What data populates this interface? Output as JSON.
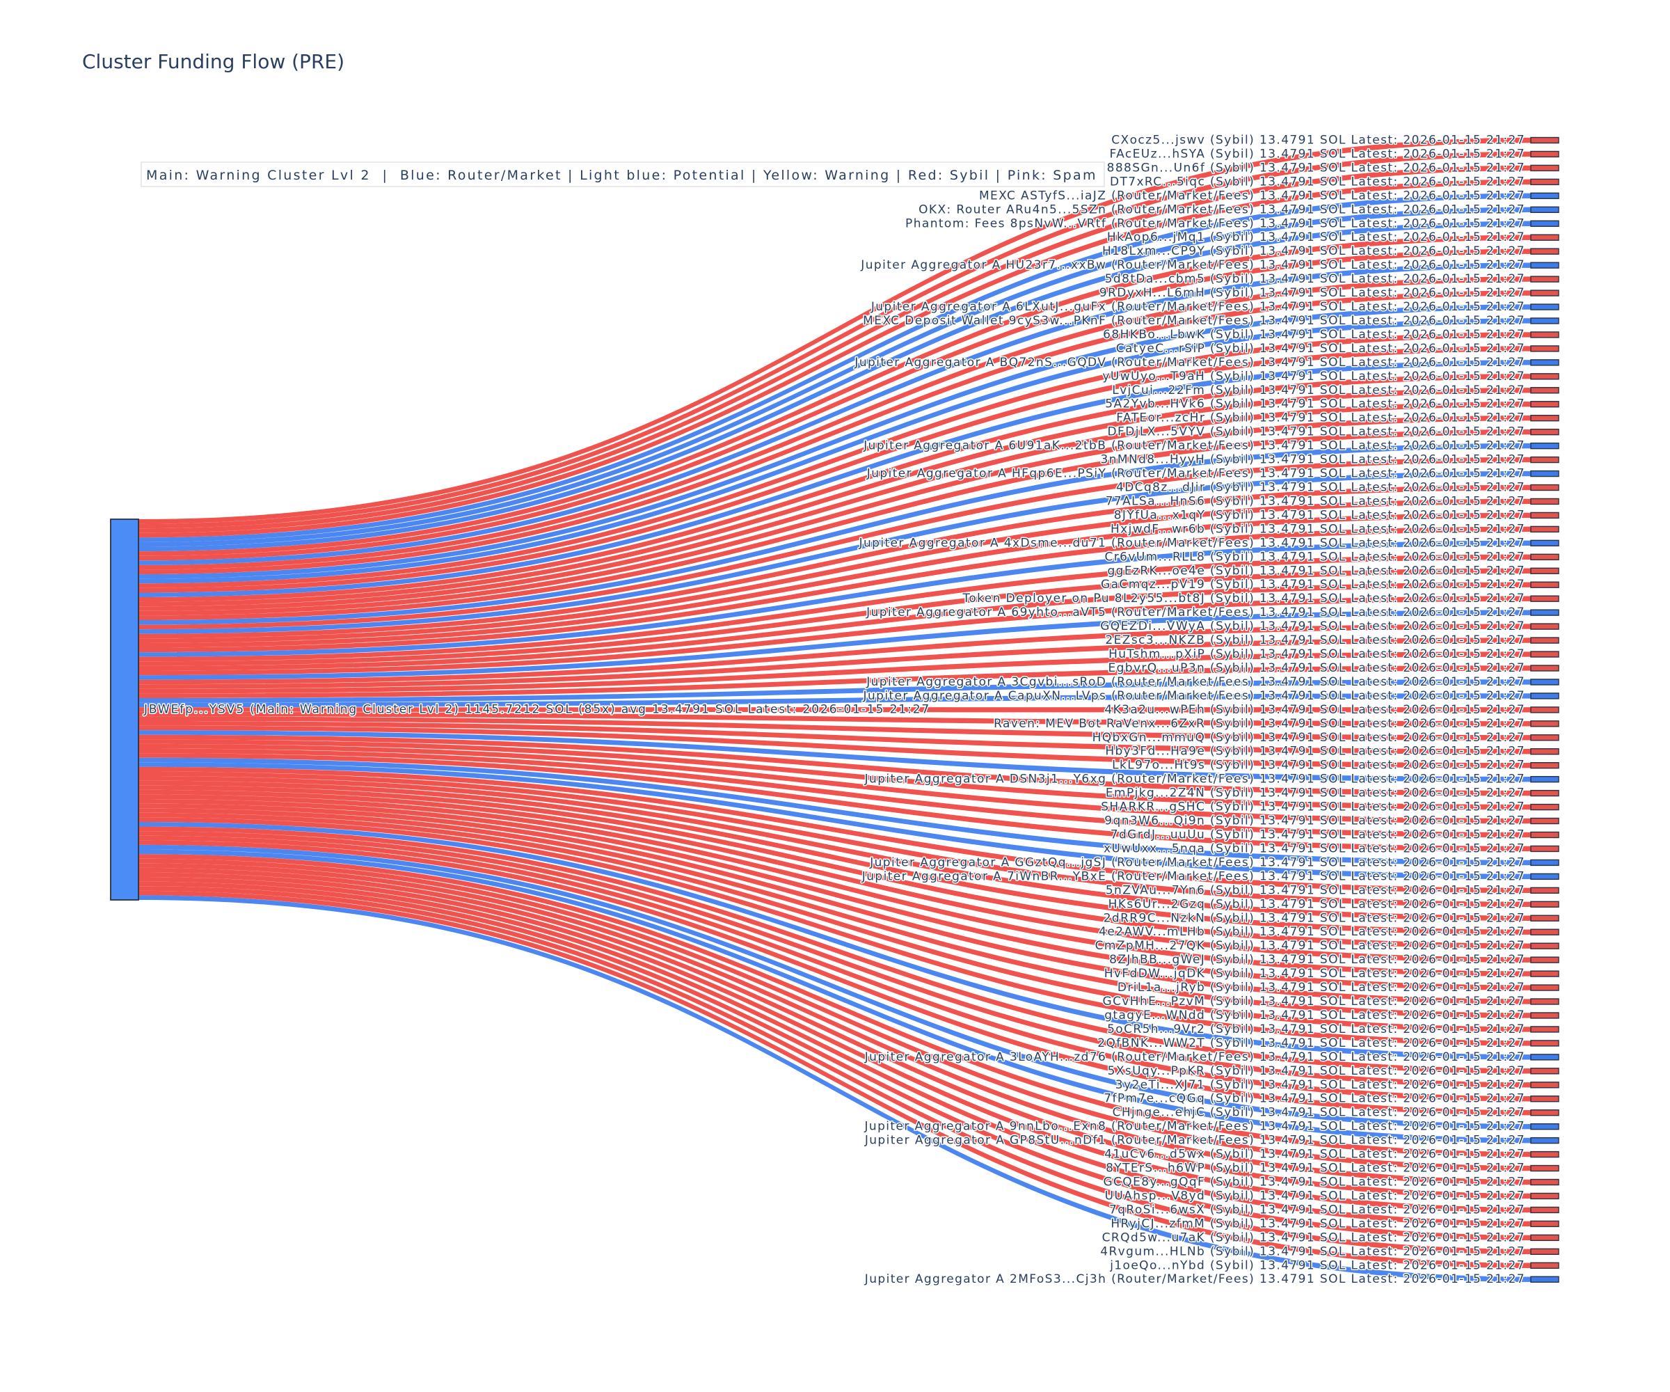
{
  "title": "Cluster Funding Flow (PRE)",
  "legend": {
    "text": "Main: Warning Cluster Lvl 2  |  Blue: Router/Market | Light blue: Potential | Yellow: Warning | Red: Sybil | Pink: Spam"
  },
  "colors": {
    "sybil_node": "#e4544e",
    "sybil_flow": "#f0534e",
    "router_node": "#3e7ce9",
    "router_flow": "#4c86f0",
    "main_node": "#4b8cf6",
    "node_border": "#2a3240",
    "text": "#2a3f5f"
  },
  "chart_data": {
    "type": "sankey",
    "source_node": {
      "label": "JBWEfp...YSV5 (Main: Warning Cluster Lvl 2) 1145.7212 SOL (85x) avg 13.4791 SOL Latest: 2026-01-15 21:27",
      "address": "JBWEfp...YSV5",
      "category": "Main: Warning Cluster Lvl 2",
      "total_sol": "1145.7212",
      "tx_count": "85x",
      "avg_sol": "13.4791",
      "latest": "2026-01-15 21:27"
    },
    "link_value_sol": "13.4791",
    "label_suffix": "13.4791 SOL Latest: 2026-01-15 21:27",
    "targets": [
      {
        "name": "CXocz5...jswv",
        "category": "Sybil"
      },
      {
        "name": "FAcEUz...hSYA",
        "category": "Sybil"
      },
      {
        "name": "888SGn...Un6f",
        "category": "Sybil"
      },
      {
        "name": "DT7xRC...5iqc",
        "category": "Sybil"
      },
      {
        "name": "MEXC ASTyfS...iaJZ",
        "category": "Router/Market/Fees"
      },
      {
        "name": "OKX: Router ARu4n5...5SZn",
        "category": "Router/Market/Fees"
      },
      {
        "name": "Phantom: Fees 8psNvW...VRtf",
        "category": "Router/Market/Fees"
      },
      {
        "name": "HkAop6...jMq1",
        "category": "Sybil"
      },
      {
        "name": "H18Lxm...CP9Y",
        "category": "Sybil"
      },
      {
        "name": "Jupiter Aggregator A HU23r7...xxBw",
        "category": "Router/Market/Fees"
      },
      {
        "name": "5d8tDa...cbm5",
        "category": "Sybil"
      },
      {
        "name": "9RDyxH...L6mH",
        "category": "Sybil"
      },
      {
        "name": "Jupiter Aggregator A 6LXutJ...guFx",
        "category": "Router/Market/Fees"
      },
      {
        "name": "MEXC Deposit Wallet 9cyS3w...PKnF",
        "category": "Router/Market/Fees"
      },
      {
        "name": "68HKBo...LbwK",
        "category": "Sybil"
      },
      {
        "name": "CatyeC...rSiP",
        "category": "Sybil"
      },
      {
        "name": "Jupiter Aggregator A BQ72nS...GQDV",
        "category": "Router/Market/Fees"
      },
      {
        "name": "yUwUyo...T9aH",
        "category": "Sybil"
      },
      {
        "name": "LvjCui...22Fm",
        "category": "Sybil"
      },
      {
        "name": "5A2Yvb...HVk6",
        "category": "Sybil"
      },
      {
        "name": "FATEor...zcHr",
        "category": "Sybil"
      },
      {
        "name": "DFDjLX...5VYV",
        "category": "Sybil"
      },
      {
        "name": "Jupiter Aggregator A 6U91aK...2tbB",
        "category": "Router/Market/Fees"
      },
      {
        "name": "3nMNd8...HyyH",
        "category": "Sybil"
      },
      {
        "name": "Jupiter Aggregator A HFqp6E...PSiY",
        "category": "Router/Market/Fees"
      },
      {
        "name": "4DCq8z...dJir",
        "category": "Sybil"
      },
      {
        "name": "77ALSa...HnS6",
        "category": "Sybil"
      },
      {
        "name": "8JYfUa...x1qY",
        "category": "Sybil"
      },
      {
        "name": "HxjwdF...wr6b",
        "category": "Sybil"
      },
      {
        "name": "Jupiter Aggregator A 4xDsme...du71",
        "category": "Router/Market/Fees"
      },
      {
        "name": "Cr6vUm...RLL8",
        "category": "Sybil"
      },
      {
        "name": "ggEzRK...oe4e",
        "category": "Sybil"
      },
      {
        "name": "GaCmqz...pV19",
        "category": "Sybil"
      },
      {
        "name": "Token Deployer on Pu 8L2y55...bt8J",
        "category": "Sybil"
      },
      {
        "name": "Jupiter Aggregator A 69yhto...aVT5",
        "category": "Router/Market/Fees"
      },
      {
        "name": "GQEZDi...VWyA",
        "category": "Sybil"
      },
      {
        "name": "2EZsc3...NKZB",
        "category": "Sybil"
      },
      {
        "name": "HuTshm...pXiP",
        "category": "Sybil"
      },
      {
        "name": "EgbvrQ...uP3n",
        "category": "Sybil"
      },
      {
        "name": "Jupiter Aggregator A 3Cgvbi...sRoD",
        "category": "Router/Market/Fees"
      },
      {
        "name": "Jupiter Aggregator A CapuXN...LVps",
        "category": "Router/Market/Fees"
      },
      {
        "name": "4K3a2u...wPEh",
        "category": "Sybil"
      },
      {
        "name": "Raven: MEV Bot RaVenx...6ZxR",
        "category": "Sybil"
      },
      {
        "name": "HQbxGn...mmuQ",
        "category": "Sybil"
      },
      {
        "name": "Hby3Fd...Ha9e",
        "category": "Sybil"
      },
      {
        "name": "LkL97o...Ht9s",
        "category": "Sybil"
      },
      {
        "name": "Jupiter Aggregator A DSN3j1...Y6xg",
        "category": "Router/Market/Fees"
      },
      {
        "name": "EmPjkg...2Z4N",
        "category": "Sybil"
      },
      {
        "name": "SHARKR...gSHC",
        "category": "Sybil"
      },
      {
        "name": "9qn3W6...Qi9n",
        "category": "Sybil"
      },
      {
        "name": "7dGrdJ...uuUu",
        "category": "Sybil"
      },
      {
        "name": "xUwUxx...5nqa",
        "category": "Sybil"
      },
      {
        "name": "Jupiter Aggregator A GGztQq...jgSJ",
        "category": "Router/Market/Fees"
      },
      {
        "name": "Jupiter Aggregator A 7iWnBR...YBxE",
        "category": "Router/Market/Fees"
      },
      {
        "name": "5nZVAu...7Yn6",
        "category": "Sybil"
      },
      {
        "name": "HKs6Ur...2Gzq",
        "category": "Sybil"
      },
      {
        "name": "2dRR9C...NzkN",
        "category": "Sybil"
      },
      {
        "name": "4e2AWV...mLHb",
        "category": "Sybil"
      },
      {
        "name": "CmZpMH...27QK",
        "category": "Sybil"
      },
      {
        "name": "8ZJhBB...gWeJ",
        "category": "Sybil"
      },
      {
        "name": "HvFdDW...jqDK",
        "category": "Sybil"
      },
      {
        "name": "DriL1a...jRyb",
        "category": "Sybil"
      },
      {
        "name": "GCvHhE...PzvM",
        "category": "Sybil"
      },
      {
        "name": "gtagyE...WNdd",
        "category": "Sybil"
      },
      {
        "name": "5oCR5h...9Vr2",
        "category": "Sybil"
      },
      {
        "name": "2QfBNK...WW2T",
        "category": "Sybil"
      },
      {
        "name": "Jupiter Aggregator A 3LoAYH...zd76",
        "category": "Router/Market/Fees"
      },
      {
        "name": "5XsUqy...PpKR",
        "category": "Sybil"
      },
      {
        "name": "3y2eTi...XJ71",
        "category": "Sybil"
      },
      {
        "name": "7fPm7e...cQGq",
        "category": "Sybil"
      },
      {
        "name": "CHjnge...ehjC",
        "category": "Sybil"
      },
      {
        "name": "Jupiter Aggregator A 9nnLbo...Exn8",
        "category": "Router/Market/Fees"
      },
      {
        "name": "Jupiter Aggregator A GP8StU...nDf1",
        "category": "Router/Market/Fees"
      },
      {
        "name": "41uCv6...d5wx",
        "category": "Sybil"
      },
      {
        "name": "8YTErS...h6WP",
        "category": "Sybil"
      },
      {
        "name": "GCQE8y...gQqF",
        "category": "Sybil"
      },
      {
        "name": "UUAhsp...V8yd",
        "category": "Sybil"
      },
      {
        "name": "7qRoSi...6wsX",
        "category": "Sybil"
      },
      {
        "name": "HRyjCJ...zfmM",
        "category": "Sybil"
      },
      {
        "name": "CRQd5w...u7aK",
        "category": "Sybil"
      },
      {
        "name": "4Rvgum...HLNb",
        "category": "Sybil"
      },
      {
        "name": "j1oeQo...nYbd",
        "category": "Sybil"
      },
      {
        "name": "Jupiter Aggregator A 2MFoS3...Cj3h",
        "category": "Router/Market/Fees"
      }
    ]
  }
}
